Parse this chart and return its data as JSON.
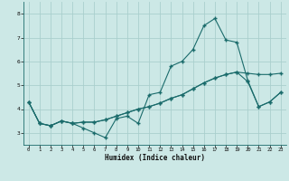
{
  "xlabel": "Humidex (Indice chaleur)",
  "bg_color": "#cce8e6",
  "grid_color": "#aacfcd",
  "line_color": "#1a6b6b",
  "xlim": [
    -0.5,
    23.5
  ],
  "ylim": [
    2.5,
    8.5
  ],
  "xticks": [
    0,
    1,
    2,
    3,
    4,
    5,
    6,
    7,
    8,
    9,
    10,
    11,
    12,
    13,
    14,
    15,
    16,
    17,
    18,
    19,
    20,
    21,
    22,
    23
  ],
  "yticks": [
    3,
    4,
    5,
    6,
    7,
    8
  ],
  "series1": [
    4.3,
    3.4,
    3.3,
    3.5,
    3.4,
    3.2,
    3.0,
    2.8,
    3.6,
    3.7,
    3.4,
    4.6,
    4.7,
    5.8,
    6.0,
    6.5,
    7.5,
    7.8,
    6.9,
    6.8,
    5.2,
    4.1,
    4.3,
    4.7
  ],
  "series2": [
    4.3,
    3.4,
    3.3,
    3.5,
    3.4,
    3.45,
    3.45,
    3.55,
    3.7,
    3.85,
    4.0,
    4.1,
    4.25,
    4.45,
    4.6,
    4.85,
    5.1,
    5.3,
    5.45,
    5.55,
    5.5,
    5.45,
    5.45,
    5.5
  ],
  "series3": [
    4.3,
    3.4,
    3.3,
    3.5,
    3.4,
    3.45,
    3.45,
    3.55,
    3.7,
    3.85,
    4.0,
    4.1,
    4.25,
    4.45,
    4.6,
    4.85,
    5.1,
    5.3,
    5.45,
    5.55,
    5.15,
    4.1,
    4.3,
    4.7
  ]
}
